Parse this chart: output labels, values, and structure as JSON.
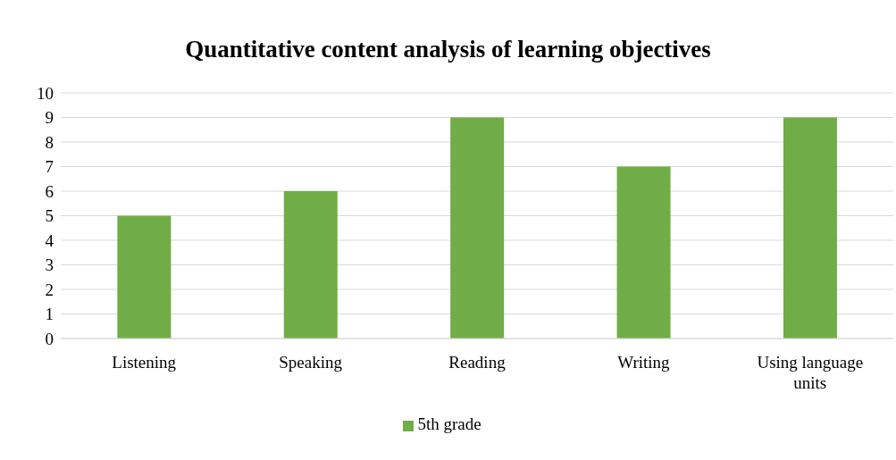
{
  "chart_data": {
    "type": "bar",
    "title": "Quantitative content analysis of learning objectives",
    "categories": [
      "Listening",
      "Speaking",
      "Reading",
      "Writing",
      "Using language units"
    ],
    "series": [
      {
        "name": "5th grade",
        "color": "#70ad47",
        "values": [
          5,
          6,
          9,
          7,
          9
        ]
      }
    ],
    "ylim": [
      0,
      10
    ],
    "yticks": [
      0,
      1,
      2,
      3,
      4,
      5,
      6,
      7,
      8,
      9,
      10
    ],
    "grid": "y",
    "legend": "bottom"
  }
}
